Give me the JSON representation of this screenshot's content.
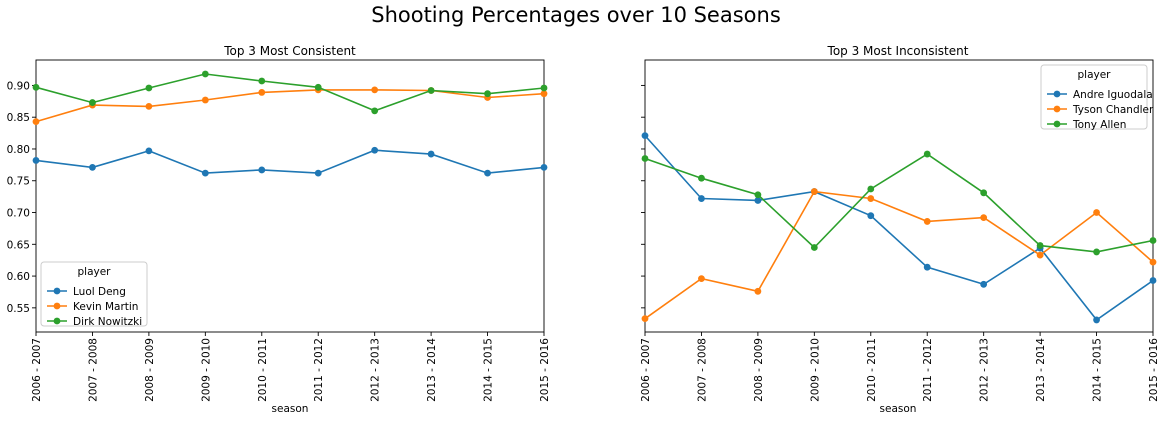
{
  "figure": {
    "suptitle": "Shooting Percentages over 10 Seasons",
    "legend_title": "player",
    "colors": {
      "blue": "#1f77b4",
      "orange": "#ff7f0e",
      "green": "#2ca02c"
    }
  },
  "chart_data": [
    {
      "type": "line",
      "title": "Top 3 Most Consistent",
      "xlabel": "season",
      "ylabel": "",
      "categories": [
        "2006 - 2007",
        "2007 - 2008",
        "2008 - 2009",
        "2009 - 2010",
        "2010 - 2011",
        "2011 - 2012",
        "2012 - 2013",
        "2013 - 2014",
        "2014 - 2015",
        "2015 - 2016"
      ],
      "ylim": [
        0.512,
        0.94
      ],
      "yticks": [
        0.55,
        0.6,
        0.65,
        0.7,
        0.75,
        0.8,
        0.85,
        0.9
      ],
      "ytick_labels": [
        "0.55",
        "0.60",
        "0.65",
        "0.70",
        "0.75",
        "0.80",
        "0.85",
        "0.90"
      ],
      "show_yticklabels": true,
      "legend_position": "lower-left",
      "grid": false,
      "series": [
        {
          "name": "Luol Deng",
          "color": "#1f77b4",
          "values": [
            0.782,
            0.771,
            0.797,
            0.762,
            0.767,
            0.762,
            0.798,
            0.792,
            0.762,
            0.771
          ]
        },
        {
          "name": "Kevin Martin",
          "color": "#ff7f0e",
          "values": [
            0.843,
            0.869,
            0.867,
            0.877,
            0.889,
            0.893,
            0.893,
            0.892,
            0.881,
            0.887
          ]
        },
        {
          "name": "Dirk Nowitzki",
          "color": "#2ca02c",
          "values": [
            0.897,
            0.873,
            0.896,
            0.918,
            0.907,
            0.897,
            0.86,
            0.892,
            0.887,
            0.896
          ]
        }
      ]
    },
    {
      "type": "line",
      "title": "Top 3 Most Inconsistent",
      "xlabel": "season",
      "ylabel": "",
      "categories": [
        "2006 - 2007",
        "2007 - 2008",
        "2008 - 2009",
        "2009 - 2010",
        "2010 - 2011",
        "2011 - 2012",
        "2012 - 2013",
        "2013 - 2014",
        "2014 - 2015",
        "2015 - 2016"
      ],
      "ylim": [
        0.512,
        0.94
      ],
      "yticks": [
        0.55,
        0.6,
        0.65,
        0.7,
        0.75,
        0.8,
        0.85,
        0.9
      ],
      "ytick_labels": [
        "0.55",
        "0.60",
        "0.65",
        "0.70",
        "0.75",
        "0.80",
        "0.85",
        "0.90"
      ],
      "show_yticklabels": false,
      "legend_position": "upper-right",
      "grid": false,
      "series": [
        {
          "name": "Andre Iguodala",
          "color": "#1f77b4",
          "values": [
            0.821,
            0.722,
            0.719,
            0.733,
            0.695,
            0.614,
            0.587,
            0.644,
            0.531,
            0.593
          ]
        },
        {
          "name": "Tyson Chandler",
          "color": "#ff7f0e",
          "values": [
            0.533,
            0.596,
            0.576,
            0.733,
            0.722,
            0.686,
            0.692,
            0.633,
            0.7,
            0.622
          ]
        },
        {
          "name": "Tony Allen",
          "color": "#2ca02c",
          "values": [
            0.785,
            0.754,
            0.728,
            0.645,
            0.737,
            0.792,
            0.731,
            0.648,
            0.638,
            0.656
          ]
        }
      ]
    }
  ]
}
